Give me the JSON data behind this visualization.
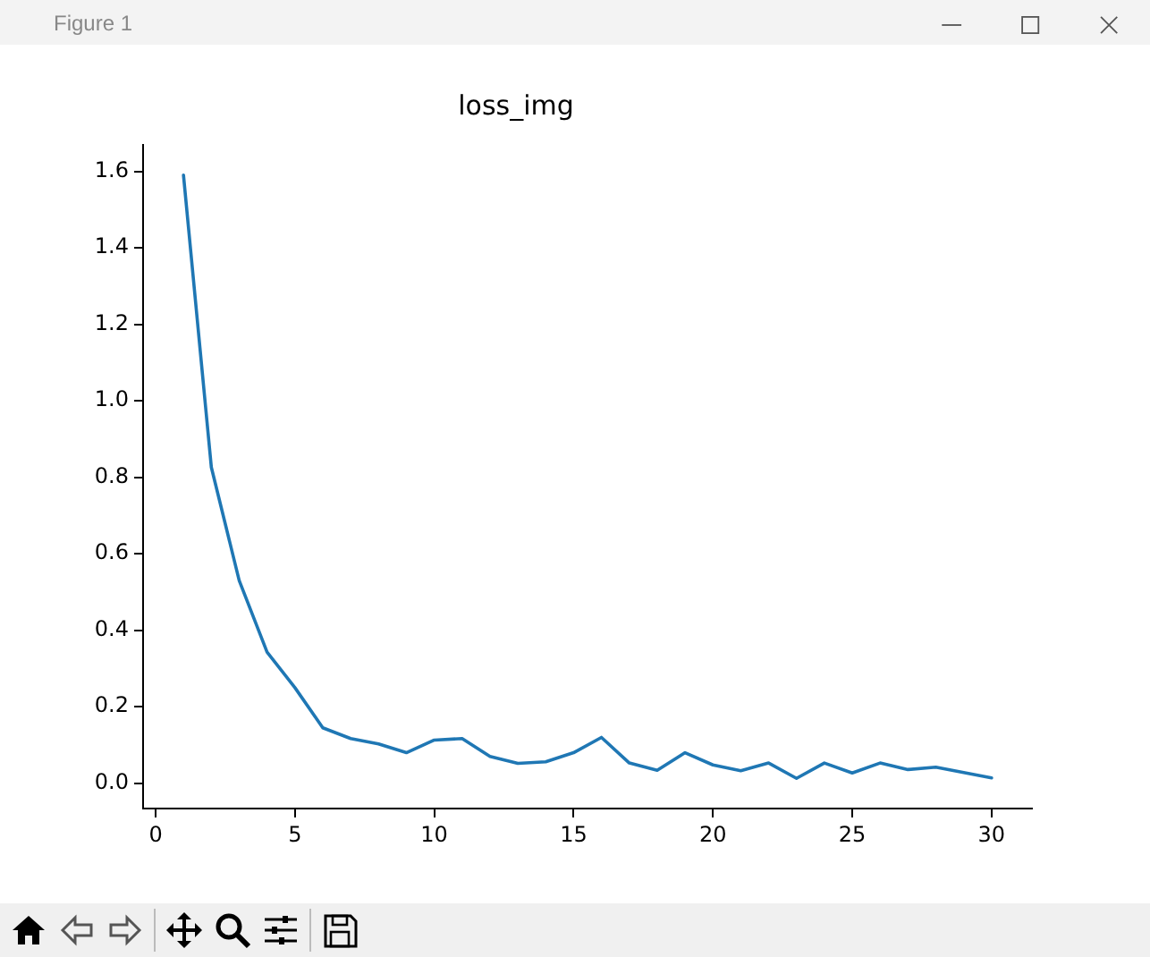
{
  "chart_data": {
    "type": "line",
    "title": "loss_img",
    "annotations": [
      "Figure 1"
    ],
    "x": [
      1,
      2,
      3,
      4,
      5,
      6,
      7,
      8,
      9,
      10,
      11,
      12,
      13,
      14,
      15,
      16,
      17,
      18,
      19,
      20,
      21,
      22,
      23,
      24,
      25,
      26,
      27,
      28,
      29,
      30
    ],
    "series": [
      {
        "color": "#1f77b4",
        "values": [
          1.59,
          0.826,
          0.53,
          0.343,
          0.25,
          0.145,
          0.117,
          0.103,
          0.08,
          0.113,
          0.117,
          0.07,
          0.052,
          0.056,
          0.08,
          0.12,
          0.053,
          0.034,
          0.08,
          0.048,
          0.033,
          0.053,
          0.013,
          0.053,
          0.027,
          0.053,
          0.036,
          0.042,
          0.028,
          0.014
        ]
      }
    ],
    "xlim": [
      -0.45,
      31.45
    ],
    "xticks": [
      0,
      5,
      10,
      15,
      20,
      25,
      30
    ],
    "ylim": [
      -0.066,
      1.669
    ],
    "yticks": [
      {
        "value": 0,
        "label": "0.0"
      },
      {
        "value": 0.2,
        "label": "0.2"
      },
      {
        "value": 0.4,
        "label": "0.4"
      },
      {
        "value": 0.6,
        "label": "0.6"
      },
      {
        "value": 0.8,
        "label": "0.8"
      },
      {
        "value": 1,
        "label": "1.0"
      },
      {
        "value": 1.2,
        "label": "1.2"
      },
      {
        "value": 1.4,
        "label": "1.4"
      },
      {
        "value": 1.6,
        "label": "1.6"
      }
    ],
    "grid": false,
    "legend": false,
    "marker": "none",
    "line_style": "solid"
  }
}
